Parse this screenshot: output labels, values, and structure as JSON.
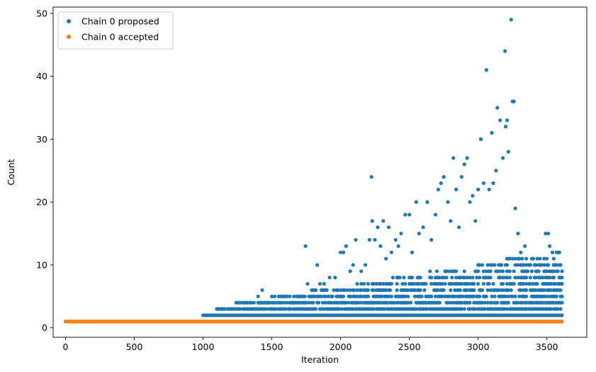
{
  "chart_data": {
    "type": "scatter",
    "title": "",
    "xlabel": "Iteration",
    "ylabel": "Count",
    "xlim": [
      -90,
      3790
    ],
    "ylim": [
      -1.5,
      51
    ],
    "xticks": [
      0,
      500,
      1000,
      1500,
      2000,
      2500,
      3000,
      3500
    ],
    "yticks": [
      0,
      10,
      20,
      30,
      40,
      50
    ],
    "grid": false,
    "legend_position": "top-left",
    "series": [
      {
        "name": "Chain 0 proposed",
        "color": "#1f77b4",
        "baseline_points": [
          [
            0,
            1
          ],
          [
            3610,
            1
          ]
        ],
        "dense_band": [
          [
            1000,
            2
          ],
          [
            3610,
            2
          ]
        ],
        "points": [
          [
            1020,
            2
          ],
          [
            1080,
            2
          ],
          [
            1110,
            3
          ],
          [
            1140,
            3
          ],
          [
            1190,
            3
          ],
          [
            1210,
            3
          ],
          [
            1270,
            4
          ],
          [
            1300,
            3
          ],
          [
            1320,
            4
          ],
          [
            1360,
            3
          ],
          [
            1400,
            5
          ],
          [
            1430,
            6
          ],
          [
            1470,
            4
          ],
          [
            1500,
            5
          ],
          [
            1540,
            4
          ],
          [
            1570,
            5
          ],
          [
            1600,
            5
          ],
          [
            1650,
            4
          ],
          [
            1700,
            5
          ],
          [
            1720,
            5
          ],
          [
            1745,
            13
          ],
          [
            1760,
            7
          ],
          [
            1790,
            6
          ],
          [
            1830,
            10
          ],
          [
            1850,
            7
          ],
          [
            1880,
            7
          ],
          [
            1920,
            8
          ],
          [
            1960,
            8
          ],
          [
            2000,
            12
          ],
          [
            2020,
            12
          ],
          [
            2040,
            13
          ],
          [
            2070,
            9
          ],
          [
            2090,
            10
          ],
          [
            2110,
            14
          ],
          [
            2150,
            9
          ],
          [
            2180,
            10
          ],
          [
            2210,
            14
          ],
          [
            2225,
            24
          ],
          [
            2230,
            17
          ],
          [
            2250,
            14
          ],
          [
            2270,
            16
          ],
          [
            2290,
            13
          ],
          [
            2310,
            17
          ],
          [
            2330,
            11
          ],
          [
            2350,
            16
          ],
          [
            2370,
            12
          ],
          [
            2400,
            14
          ],
          [
            2420,
            13
          ],
          [
            2440,
            15
          ],
          [
            2470,
            18
          ],
          [
            2500,
            18
          ],
          [
            2520,
            12
          ],
          [
            2550,
            20
          ],
          [
            2570,
            15
          ],
          [
            2600,
            16
          ],
          [
            2630,
            20
          ],
          [
            2660,
            14
          ],
          [
            2690,
            18
          ],
          [
            2710,
            22
          ],
          [
            2730,
            23
          ],
          [
            2750,
            24
          ],
          [
            2780,
            20
          ],
          [
            2800,
            17
          ],
          [
            2820,
            27
          ],
          [
            2840,
            22
          ],
          [
            2860,
            16
          ],
          [
            2880,
            24
          ],
          [
            2900,
            26
          ],
          [
            2920,
            27
          ],
          [
            2940,
            20
          ],
          [
            2960,
            21
          ],
          [
            2980,
            17
          ],
          [
            3000,
            22
          ],
          [
            3020,
            30
          ],
          [
            3040,
            23
          ],
          [
            3060,
            41
          ],
          [
            3080,
            22
          ],
          [
            3100,
            31
          ],
          [
            3110,
            23
          ],
          [
            3130,
            25
          ],
          [
            3140,
            35
          ],
          [
            3160,
            33
          ],
          [
            3180,
            27
          ],
          [
            3195,
            44
          ],
          [
            3200,
            32
          ],
          [
            3210,
            33
          ],
          [
            3220,
            28
          ],
          [
            3240,
            49
          ],
          [
            3250,
            36
          ],
          [
            3260,
            36
          ],
          [
            3270,
            19
          ],
          [
            3290,
            15
          ],
          [
            3310,
            12
          ],
          [
            3340,
            13
          ],
          [
            3370,
            10
          ],
          [
            3400,
            11
          ],
          [
            3420,
            10
          ],
          [
            3450,
            10
          ],
          [
            3470,
            8
          ],
          [
            3490,
            15
          ],
          [
            3510,
            15
          ],
          [
            3520,
            13
          ],
          [
            3550,
            10
          ],
          [
            3570,
            10
          ],
          [
            3590,
            12
          ],
          [
            3600,
            8
          ]
        ]
      },
      {
        "name": "Chain 0 accepted",
        "color": "#ff7f0e",
        "baseline_points": [
          [
            0,
            1
          ],
          [
            3610,
            1
          ]
        ],
        "points": []
      }
    ]
  }
}
